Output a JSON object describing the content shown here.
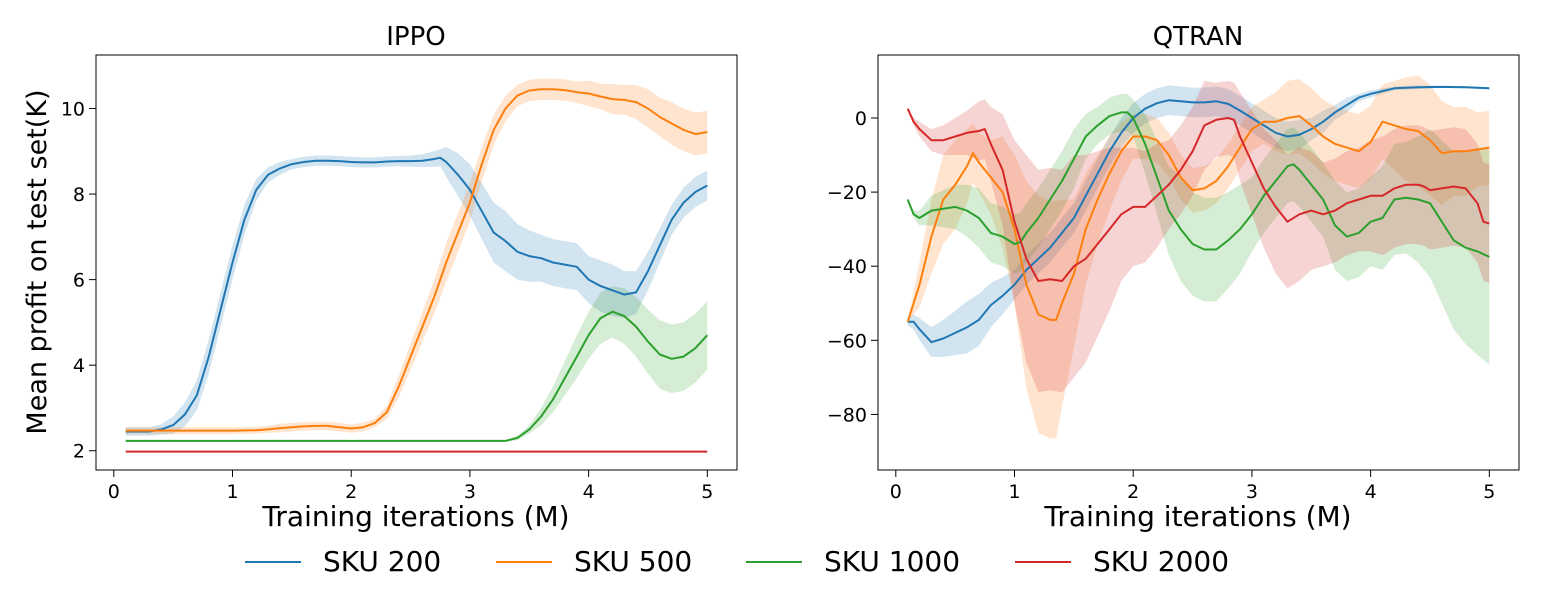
{
  "legend": {
    "entries": [
      {
        "label": "SKU 200",
        "color": "#1f77b4"
      },
      {
        "label": "SKU 500",
        "color": "#ff7f0e"
      },
      {
        "label": "SKU 1000",
        "color": "#2ca02c"
      },
      {
        "label": "SKU 2000",
        "color": "#d62728"
      }
    ]
  },
  "chart_data": [
    {
      "type": "line",
      "title": "IPPO",
      "xlabel": "Training iterations (M)",
      "ylabel": "Mean profit on test set(K)",
      "xlim": [
        -0.15,
        5.25
      ],
      "ylim": [
        1.55,
        11.25
      ],
      "xticks": [
        0,
        1,
        2,
        3,
        4,
        5
      ],
      "xtick_labels": [
        "0",
        "1",
        "2",
        "3",
        "4",
        "5"
      ],
      "yticks": [
        2,
        4,
        6,
        8,
        10
      ],
      "ytick_labels": [
        "2",
        "4",
        "6",
        "8",
        "10"
      ],
      "series": [
        {
          "name": "SKU 200",
          "color": "#1f77b4",
          "x": [
            0.1,
            0.3,
            0.4,
            0.5,
            0.6,
            0.7,
            0.8,
            0.9,
            1.0,
            1.1,
            1.2,
            1.3,
            1.4,
            1.5,
            1.6,
            1.7,
            1.8,
            1.9,
            2.0,
            2.1,
            2.2,
            2.3,
            2.4,
            2.5,
            2.6,
            2.7,
            2.75,
            2.8,
            2.9,
            3.0,
            3.1,
            3.2,
            3.3,
            3.4,
            3.5,
            3.6,
            3.7,
            3.8,
            3.9,
            4.0,
            4.1,
            4.2,
            4.3,
            4.4,
            4.5,
            4.6,
            4.7,
            4.8,
            4.9,
            5.0
          ],
          "y": [
            2.45,
            2.45,
            2.5,
            2.6,
            2.85,
            3.3,
            4.2,
            5.3,
            6.4,
            7.4,
            8.1,
            8.45,
            8.6,
            8.7,
            8.75,
            8.78,
            8.78,
            8.77,
            8.75,
            8.74,
            8.74,
            8.76,
            8.77,
            8.77,
            8.78,
            8.82,
            8.85,
            8.75,
            8.45,
            8.1,
            7.6,
            7.1,
            6.9,
            6.65,
            6.55,
            6.5,
            6.4,
            6.35,
            6.3,
            6.0,
            5.85,
            5.75,
            5.65,
            5.7,
            6.2,
            6.8,
            7.4,
            7.8,
            8.05,
            8.2
          ],
          "band": [
            0.1,
            0.1,
            0.12,
            0.2,
            0.28,
            0.35,
            0.4,
            0.4,
            0.4,
            0.35,
            0.25,
            0.18,
            0.15,
            0.12,
            0.12,
            0.12,
            0.12,
            0.12,
            0.12,
            0.12,
            0.12,
            0.12,
            0.12,
            0.13,
            0.15,
            0.18,
            0.2,
            0.35,
            0.5,
            0.6,
            0.65,
            0.7,
            0.7,
            0.65,
            0.6,
            0.55,
            0.55,
            0.55,
            0.55,
            0.55,
            0.6,
            0.6,
            0.55,
            0.5,
            0.45,
            0.4,
            0.35,
            0.35,
            0.35,
            0.35
          ]
        },
        {
          "name": "SKU 500",
          "color": "#ff7f0e",
          "x": [
            0.1,
            0.5,
            1.0,
            1.2,
            1.3,
            1.4,
            1.5,
            1.6,
            1.7,
            1.8,
            1.9,
            2.0,
            2.1,
            2.2,
            2.3,
            2.4,
            2.5,
            2.6,
            2.7,
            2.8,
            2.9,
            3.0,
            3.1,
            3.2,
            3.3,
            3.4,
            3.5,
            3.6,
            3.7,
            3.8,
            3.9,
            4.0,
            4.1,
            4.2,
            4.3,
            4.4,
            4.5,
            4.6,
            4.7,
            4.8,
            4.9,
            5.0
          ],
          "y": [
            2.47,
            2.47,
            2.47,
            2.48,
            2.5,
            2.53,
            2.55,
            2.57,
            2.58,
            2.58,
            2.55,
            2.52,
            2.55,
            2.65,
            2.9,
            3.5,
            4.2,
            4.9,
            5.6,
            6.4,
            7.1,
            7.8,
            8.7,
            9.5,
            10.0,
            10.3,
            10.42,
            10.45,
            10.45,
            10.43,
            10.38,
            10.35,
            10.28,
            10.22,
            10.2,
            10.15,
            10.0,
            9.8,
            9.65,
            9.5,
            9.4,
            9.45
          ],
          "band": [
            0.08,
            0.08,
            0.08,
            0.08,
            0.08,
            0.1,
            0.1,
            0.1,
            0.1,
            0.1,
            0.1,
            0.1,
            0.1,
            0.1,
            0.15,
            0.25,
            0.3,
            0.35,
            0.4,
            0.45,
            0.45,
            0.45,
            0.4,
            0.35,
            0.3,
            0.25,
            0.25,
            0.25,
            0.25,
            0.25,
            0.25,
            0.3,
            0.3,
            0.35,
            0.35,
            0.4,
            0.45,
            0.45,
            0.5,
            0.5,
            0.5,
            0.5
          ]
        },
        {
          "name": "SKU 1000",
          "color": "#2ca02c",
          "x": [
            0.1,
            1.0,
            2.0,
            3.0,
            3.3,
            3.4,
            3.5,
            3.6,
            3.7,
            3.8,
            3.9,
            4.0,
            4.1,
            4.2,
            4.3,
            4.4,
            4.5,
            4.6,
            4.7,
            4.8,
            4.9,
            5.0
          ],
          "y": [
            2.23,
            2.23,
            2.23,
            2.23,
            2.23,
            2.3,
            2.5,
            2.8,
            3.2,
            3.7,
            4.2,
            4.7,
            5.1,
            5.25,
            5.15,
            4.9,
            4.55,
            4.25,
            4.15,
            4.2,
            4.4,
            4.7
          ],
          "band": [
            0.02,
            0.02,
            0.02,
            0.02,
            0.02,
            0.05,
            0.1,
            0.2,
            0.3,
            0.4,
            0.5,
            0.55,
            0.6,
            0.6,
            0.65,
            0.7,
            0.75,
            0.8,
            0.8,
            0.8,
            0.8,
            0.8
          ]
        },
        {
          "name": "SKU 2000",
          "color": "#d62728",
          "x": [
            0.1,
            1.0,
            2.0,
            3.0,
            4.0,
            5.0
          ],
          "y": [
            1.98,
            1.98,
            1.98,
            1.98,
            1.98,
            1.98
          ],
          "band": [
            0,
            0,
            0,
            0,
            0,
            0
          ]
        }
      ]
    },
    {
      "type": "line",
      "title": "QTRAN",
      "xlabel": "Training iterations (M)",
      "ylabel": "",
      "xlim": [
        -0.15,
        5.25
      ],
      "ylim": [
        -95,
        17
      ],
      "xticks": [
        0,
        1,
        2,
        3,
        4,
        5
      ],
      "xtick_labels": [
        "0",
        "1",
        "2",
        "3",
        "4",
        "5"
      ],
      "yticks": [
        0,
        -20,
        -40,
        -60,
        -80
      ],
      "ytick_labels": [
        "0",
        "−20",
        "−40",
        "−60",
        "−80"
      ],
      "series": [
        {
          "name": "SKU 200",
          "color": "#1f77b4",
          "x": [
            0.1,
            0.15,
            0.2,
            0.3,
            0.4,
            0.5,
            0.6,
            0.7,
            0.8,
            0.9,
            1.0,
            1.1,
            1.2,
            1.3,
            1.4,
            1.5,
            1.6,
            1.7,
            1.8,
            1.9,
            2.0,
            2.1,
            2.2,
            2.3,
            2.4,
            2.5,
            2.6,
            2.7,
            2.8,
            2.9,
            3.0,
            3.1,
            3.2,
            3.3,
            3.4,
            3.5,
            3.6,
            3.7,
            3.8,
            3.9,
            4.0,
            4.2,
            4.4,
            4.6,
            4.8,
            5.0
          ],
          "y": [
            -55,
            -55,
            -57,
            -60.5,
            -59.5,
            -58,
            -56.5,
            -54.5,
            -50.5,
            -48,
            -45,
            -41,
            -38,
            -35,
            -31,
            -27,
            -21,
            -15,
            -9,
            -4,
            0,
            2.5,
            4,
            4.8,
            4.5,
            4.2,
            4.2,
            4.5,
            3.8,
            2,
            0,
            -2,
            -4,
            -5,
            -4.5,
            -3,
            -1,
            1.5,
            3.5,
            5.5,
            6.5,
            8,
            8.3,
            8.4,
            8.3,
            8
          ],
          "band": [
            1,
            2,
            3,
            4,
            5,
            6,
            7,
            7,
            6,
            5,
            4,
            4,
            4,
            4,
            4,
            4,
            4,
            4,
            4,
            4,
            4,
            4,
            4,
            4,
            4,
            4,
            4,
            4,
            4,
            4,
            4,
            4,
            4,
            4,
            4,
            3,
            3,
            2,
            2,
            1,
            1,
            0.5,
            0.5,
            0.3,
            0.3,
            0.3
          ]
        },
        {
          "name": "SKU 500",
          "color": "#ff7f0e",
          "x": [
            0.1,
            0.2,
            0.3,
            0.4,
            0.5,
            0.6,
            0.65,
            0.7,
            0.8,
            0.9,
            1.0,
            1.1,
            1.2,
            1.3,
            1.35,
            1.4,
            1.5,
            1.6,
            1.7,
            1.8,
            1.9,
            2.0,
            2.1,
            2.2,
            2.3,
            2.4,
            2.5,
            2.6,
            2.7,
            2.8,
            2.9,
            3.0,
            3.1,
            3.2,
            3.3,
            3.4,
            3.5,
            3.6,
            3.7,
            3.8,
            3.9,
            4.0,
            4.1,
            4.2,
            4.3,
            4.4,
            4.5,
            4.6,
            4.7,
            4.8,
            4.9,
            5.0
          ],
          "y": [
            -55,
            -45,
            -32,
            -22,
            -18,
            -13,
            -9.5,
            -12,
            -16,
            -20,
            -30,
            -45,
            -53,
            -54.5,
            -54.5,
            -50,
            -42,
            -30,
            -22,
            -15,
            -9,
            -5,
            -5,
            -6,
            -10,
            -16,
            -19.5,
            -19,
            -17,
            -13,
            -8,
            -3,
            -1,
            -1,
            0,
            0.5,
            -2,
            -5,
            -7,
            -8,
            -9,
            -6.5,
            -1,
            -2,
            -3,
            -3.5,
            -6,
            -9.5,
            -9,
            -9,
            -8.5,
            -8
          ],
          "band": [
            0,
            6,
            10,
            12,
            12,
            10,
            8,
            8,
            10,
            15,
            20,
            28,
            32,
            32,
            32,
            28,
            20,
            15,
            12,
            10,
            8,
            6,
            6,
            6,
            6,
            6,
            6,
            6,
            6,
            6,
            6,
            6,
            6,
            8,
            10,
            10,
            10,
            10,
            10,
            10,
            10,
            10,
            10,
            12,
            14,
            15,
            15,
            14,
            12,
            12,
            10,
            10
          ]
        },
        {
          "name": "SKU 1000",
          "color": "#2ca02c",
          "x": [
            0.1,
            0.15,
            0.2,
            0.3,
            0.4,
            0.5,
            0.6,
            0.7,
            0.8,
            0.9,
            1.0,
            1.05,
            1.1,
            1.2,
            1.3,
            1.4,
            1.5,
            1.6,
            1.7,
            1.8,
            1.9,
            1.95,
            2.0,
            2.1,
            2.2,
            2.3,
            2.4,
            2.5,
            2.6,
            2.7,
            2.8,
            2.9,
            3.0,
            3.1,
            3.2,
            3.3,
            3.35,
            3.4,
            3.5,
            3.6,
            3.7,
            3.8,
            3.9,
            4.0,
            4.1,
            4.2,
            4.3,
            4.4,
            4.5,
            4.6,
            4.7,
            4.8,
            4.9,
            5.0
          ],
          "y": [
            -22,
            -26,
            -27,
            -25,
            -24.5,
            -24,
            -25,
            -27,
            -31,
            -32,
            -34,
            -33.5,
            -31,
            -27,
            -22,
            -17,
            -11,
            -5,
            -2,
            0.5,
            1.5,
            1.5,
            0,
            -7,
            -16,
            -25,
            -30,
            -34,
            -35.5,
            -35.5,
            -33,
            -30,
            -26,
            -21,
            -17,
            -13,
            -12.5,
            -14,
            -18,
            -22,
            -29,
            -32,
            -31,
            -28,
            -27,
            -22,
            -21.5,
            -22,
            -23,
            -28,
            -33,
            -35,
            -36,
            -37.5
          ],
          "band": [
            0,
            1,
            2,
            4,
            5,
            6,
            7,
            8,
            8,
            8,
            8,
            8,
            8,
            8,
            8,
            8,
            8,
            6,
            5,
            5,
            5,
            5,
            5,
            8,
            10,
            12,
            14,
            14,
            14,
            14,
            13,
            12,
            10,
            10,
            10,
            10,
            10,
            10,
            10,
            10,
            12,
            12,
            12,
            12,
            14,
            15,
            15,
            17,
            20,
            22,
            24,
            26,
            28,
            29
          ]
        },
        {
          "name": "SKU 2000",
          "color": "#d62728",
          "x": [
            0.1,
            0.15,
            0.2,
            0.3,
            0.4,
            0.5,
            0.6,
            0.7,
            0.75,
            0.8,
            0.9,
            1.0,
            1.1,
            1.2,
            1.3,
            1.4,
            1.5,
            1.6,
            1.7,
            1.8,
            1.9,
            2.0,
            2.1,
            2.2,
            2.3,
            2.4,
            2.5,
            2.6,
            2.7,
            2.8,
            2.85,
            2.9,
            3.0,
            3.1,
            3.2,
            3.3,
            3.4,
            3.5,
            3.6,
            3.7,
            3.8,
            3.9,
            4.0,
            4.1,
            4.2,
            4.3,
            4.4,
            4.45,
            4.5,
            4.6,
            4.7,
            4.8,
            4.9,
            4.95,
            5.0
          ],
          "y": [
            2.5,
            -1,
            -3,
            -6,
            -6,
            -5,
            -4,
            -3.5,
            -3,
            -7,
            -14,
            -28,
            -38,
            -44,
            -43.5,
            -44,
            -40,
            -38,
            -34,
            -30,
            -26,
            -24,
            -24,
            -21,
            -18,
            -14,
            -9,
            -2,
            -0.5,
            0,
            -0.5,
            -5,
            -12,
            -19,
            -24,
            -28,
            -26,
            -25,
            -26,
            -25,
            -23,
            -22,
            -21,
            -21,
            -19,
            -18,
            -18,
            -18.5,
            -19.5,
            -19,
            -18.5,
            -19,
            -23,
            -28,
            -28.5
          ],
          "band": [
            0,
            1,
            2,
            3,
            4,
            5,
            6,
            8,
            8,
            10,
            15,
            22,
            28,
            30,
            30,
            30,
            30,
            28,
            25,
            22,
            18,
            16,
            15,
            14,
            12,
            12,
            12,
            12,
            10,
            10,
            10,
            12,
            14,
            16,
            18,
            18,
            18,
            16,
            14,
            14,
            14,
            14,
            15,
            16,
            16,
            16,
            16,
            16,
            16,
            16,
            16,
            16,
            16,
            16,
            16
          ]
        }
      ]
    }
  ]
}
